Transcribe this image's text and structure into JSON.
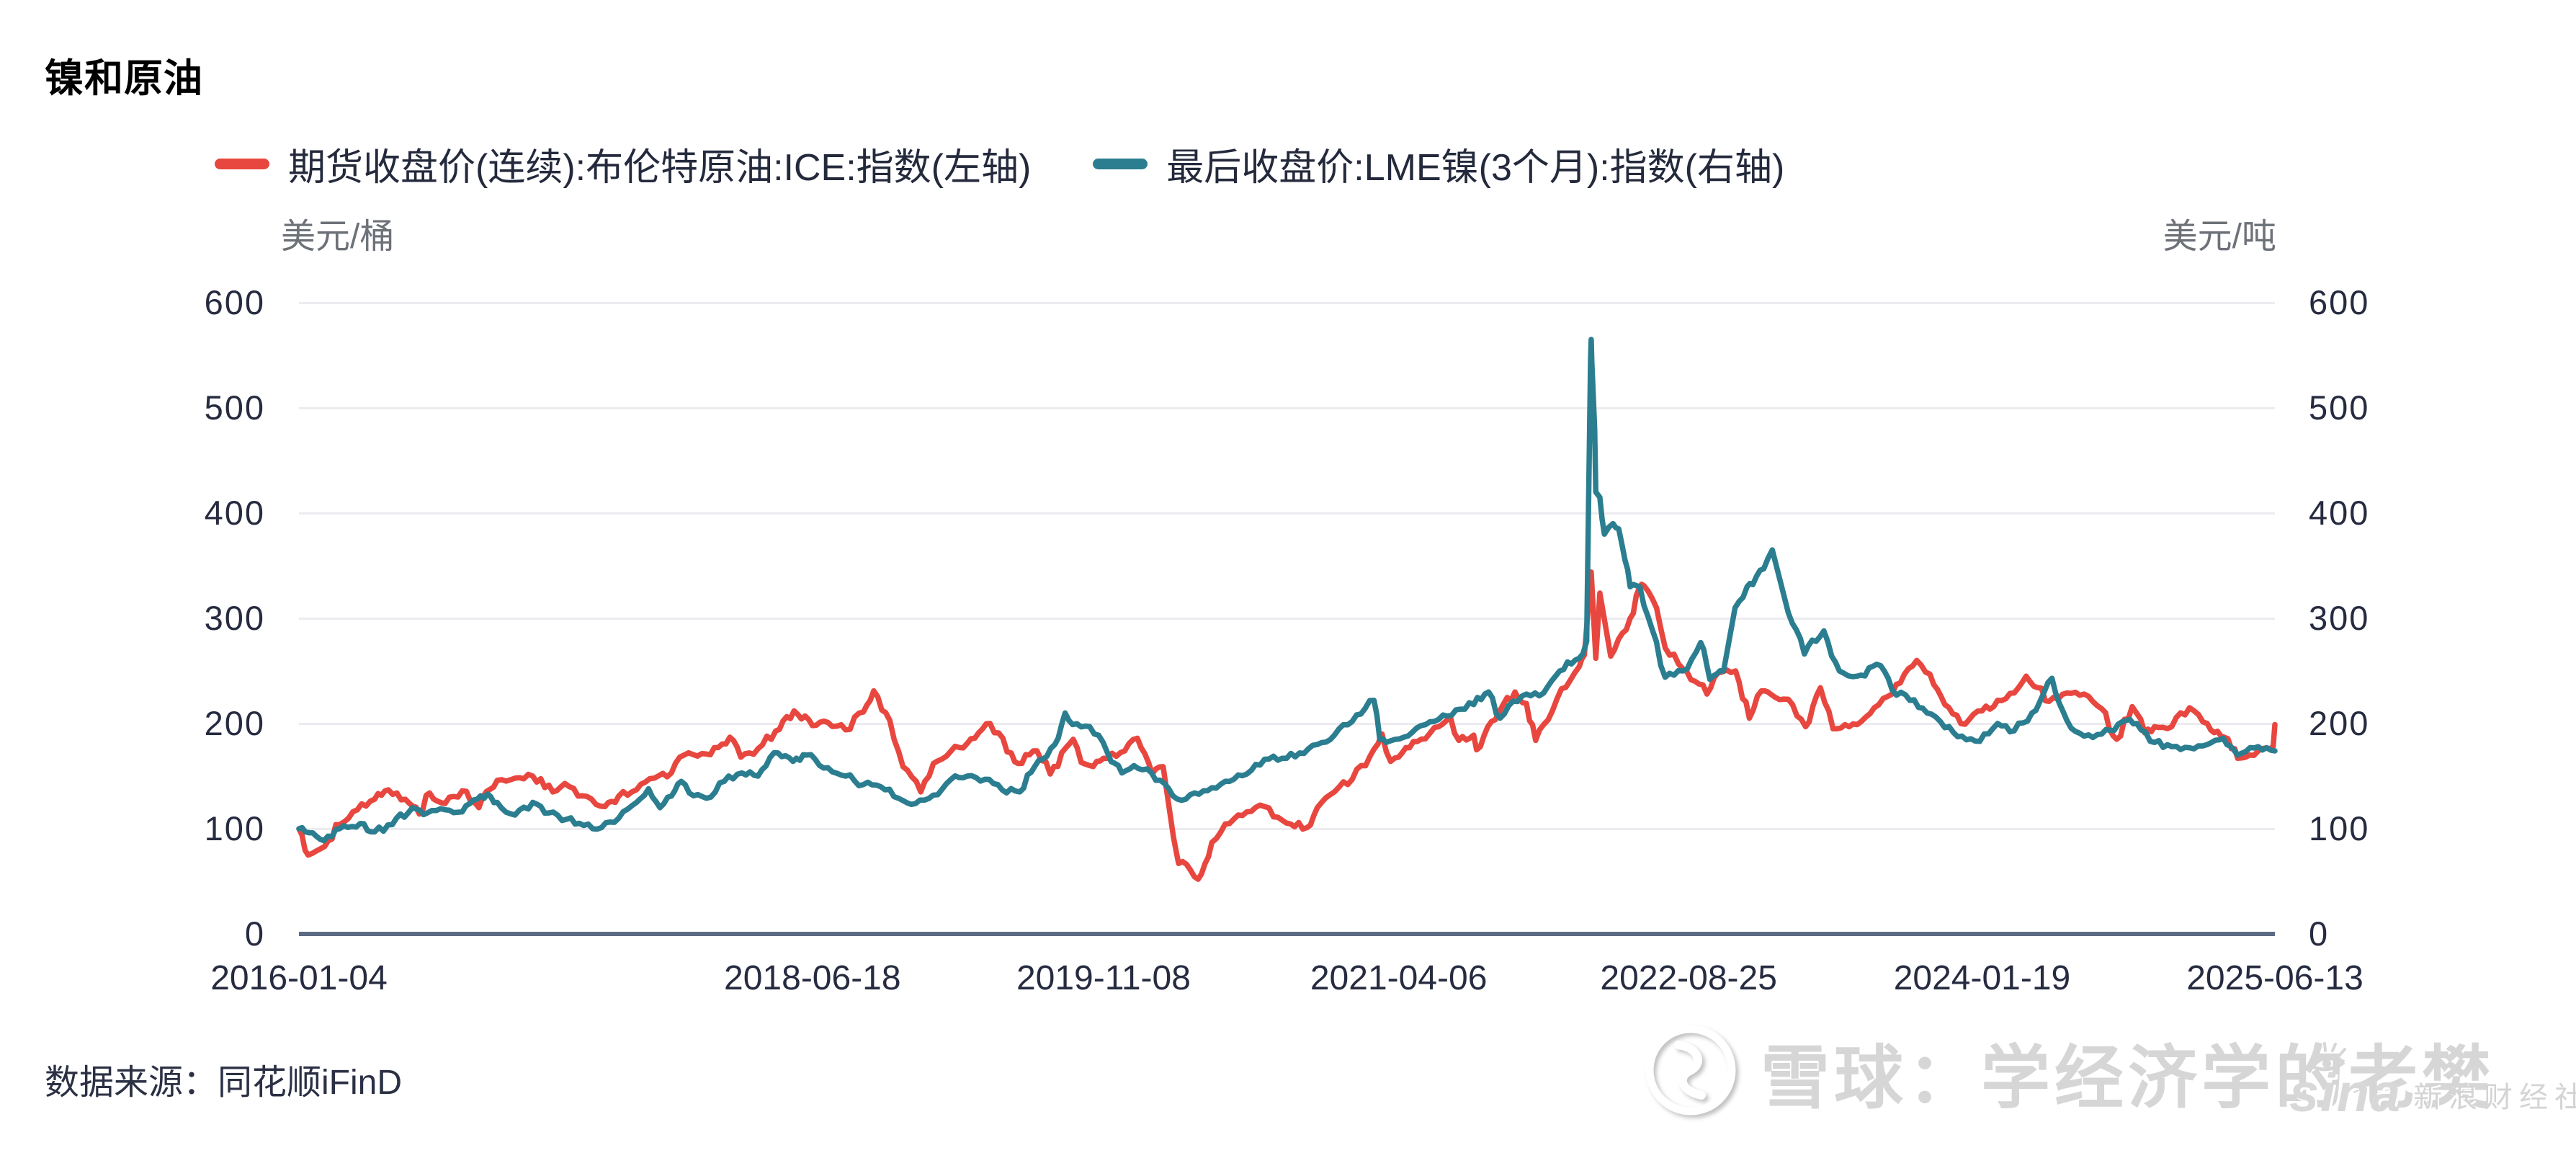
{
  "title": "镍和原油",
  "legend": [
    {
      "label": "期货收盘价(连续):布伦特原油:ICE:指数(左轴)",
      "color": "#e8473f"
    },
    {
      "label": "最后收盘价:LME镍(3个月):指数(右轴)",
      "color": "#2b7e90"
    }
  ],
  "axes": {
    "left_unit": "美元/桶",
    "right_unit": "美元/吨",
    "y_ticks": [
      0,
      100,
      200,
      300,
      400,
      500,
      600
    ],
    "x_ticks": [
      "2016-01-04",
      "2018-06-18",
      "2019-11-08",
      "2021-04-06",
      "2022-08-25",
      "2024-01-19",
      "2025-06-13"
    ]
  },
  "source": "数据来源：同花顺iFinD",
  "watermark": {
    "site": "雪球：学经济学的老樊",
    "badge_brand": "sina",
    "badge_text": "新浪财经社区"
  },
  "colors": {
    "brent": "#e8473f",
    "nickel": "#2b7e90",
    "gridline": "#ececf0",
    "axis": "#5c6a84",
    "tick_text": "#262b40",
    "unit_text": "#6d7178"
  },
  "chart_data": {
    "type": "line",
    "title": "镍和原油",
    "x_range": [
      "2016-01-04",
      "2025-06-13"
    ],
    "ylim": [
      0,
      600
    ],
    "grid": "horizontal",
    "legend_position": "top",
    "note": "两条指数曲线, 基期2016-01-04=100; 左轴为布伦特原油(美元/桶), 右轴为LME镍(美元/吨)",
    "series": [
      {
        "name": "期货收盘价(连续):布伦特原油:ICE:指数(左轴)",
        "axis": "left",
        "unit": "美元/桶",
        "color": "#e8473f",
        "points": [
          [
            "2016-01-04",
            100
          ],
          [
            "2016-01-20",
            75
          ],
          [
            "2016-02-11",
            81
          ],
          [
            "2016-03-15",
            104
          ],
          [
            "2016-04-15",
            118
          ],
          [
            "2016-05-15",
            128
          ],
          [
            "2016-06-08",
            137
          ],
          [
            "2016-07-15",
            124
          ],
          [
            "2016-08-01",
            114
          ],
          [
            "2016-08-19",
            134
          ],
          [
            "2016-09-15",
            124
          ],
          [
            "2016-10-15",
            136
          ],
          [
            "2016-11-13",
            120
          ],
          [
            "2016-12-15",
            146
          ],
          [
            "2017-01-15",
            148
          ],
          [
            "2017-02-15",
            150
          ],
          [
            "2017-03-22",
            135
          ],
          [
            "2017-04-12",
            143
          ],
          [
            "2017-05-05",
            131
          ],
          [
            "2017-06-21",
            121
          ],
          [
            "2017-07-15",
            131
          ],
          [
            "2017-08-15",
            137
          ],
          [
            "2017-09-15",
            148
          ],
          [
            "2017-10-15",
            153
          ],
          [
            "2017-11-06",
            170
          ],
          [
            "2017-12-15",
            171
          ],
          [
            "2018-01-25",
            187
          ],
          [
            "2018-02-13",
            168
          ],
          [
            "2018-03-15",
            176
          ],
          [
            "2018-04-15",
            193
          ],
          [
            "2018-05-17",
            212
          ],
          [
            "2018-06-18",
            198
          ],
          [
            "2018-07-15",
            201
          ],
          [
            "2018-08-15",
            194
          ],
          [
            "2018-09-15",
            211
          ],
          [
            "2018-10-03",
            231
          ],
          [
            "2018-10-31",
            203
          ],
          [
            "2018-11-23",
            159
          ],
          [
            "2018-12-24",
            135
          ],
          [
            "2019-01-15",
            162
          ],
          [
            "2019-02-15",
            174
          ],
          [
            "2019-03-15",
            181
          ],
          [
            "2019-04-24",
            200
          ],
          [
            "2019-05-31",
            172
          ],
          [
            "2019-06-12",
            162
          ],
          [
            "2019-07-15",
            174
          ],
          [
            "2019-08-07",
            152
          ],
          [
            "2019-09-16",
            185
          ],
          [
            "2019-09-30",
            163
          ],
          [
            "2019-10-15",
            160
          ],
          [
            "2019-11-08",
            167
          ],
          [
            "2019-12-15",
            174
          ],
          [
            "2020-01-06",
            186
          ],
          [
            "2020-02-01",
            152
          ],
          [
            "2020-02-20",
            159
          ],
          [
            "2020-03-09",
            92
          ],
          [
            "2020-03-18",
            67
          ],
          [
            "2020-04-01",
            66
          ],
          [
            "2020-04-21",
            52
          ],
          [
            "2020-05-15",
            87
          ],
          [
            "2020-06-15",
            105
          ],
          [
            "2020-07-15",
            116
          ],
          [
            "2020-08-15",
            121
          ],
          [
            "2020-09-15",
            108
          ],
          [
            "2020-10-28",
            101
          ],
          [
            "2020-11-15",
            120
          ],
          [
            "2020-12-15",
            135
          ],
          [
            "2021-01-15",
            147
          ],
          [
            "2021-02-15",
            169
          ],
          [
            "2021-03-08",
            190
          ],
          [
            "2021-03-23",
            164
          ],
          [
            "2021-04-06",
            168
          ],
          [
            "2021-04-25",
            177
          ],
          [
            "2021-05-15",
            185
          ],
          [
            "2021-06-15",
            197
          ],
          [
            "2021-07-05",
            207
          ],
          [
            "2021-07-20",
            184
          ],
          [
            "2021-08-15",
            189
          ],
          [
            "2021-08-20",
            175
          ],
          [
            "2021-09-15",
            202
          ],
          [
            "2021-10-26",
            230
          ],
          [
            "2021-11-15",
            219
          ],
          [
            "2021-12-01",
            184
          ],
          [
            "2021-12-15",
            199
          ],
          [
            "2022-01-15",
            233
          ],
          [
            "2022-02-15",
            254
          ],
          [
            "2022-02-24",
            265
          ],
          [
            "2022-03-08",
            344
          ],
          [
            "2022-03-16",
            262
          ],
          [
            "2022-03-23",
            324
          ],
          [
            "2022-04-11",
            264
          ],
          [
            "2022-05-15",
            300
          ],
          [
            "2022-05-31",
            329
          ],
          [
            "2022-06-08",
            331
          ],
          [
            "2022-06-30",
            310
          ],
          [
            "2022-07-15",
            272
          ],
          [
            "2022-08-15",
            252
          ],
          [
            "2022-09-26",
            228
          ],
          [
            "2022-10-15",
            248
          ],
          [
            "2022-11-15",
            250
          ],
          [
            "2022-12-09",
            205
          ],
          [
            "2022-12-30",
            231
          ],
          [
            "2023-01-15",
            228
          ],
          [
            "2023-02-15",
            223
          ],
          [
            "2023-03-17",
            197
          ],
          [
            "2023-04-12",
            234
          ],
          [
            "2023-05-04",
            195
          ],
          [
            "2023-06-15",
            199
          ],
          [
            "2023-07-15",
            215
          ],
          [
            "2023-08-15",
            228
          ],
          [
            "2023-09-27",
            260
          ],
          [
            "2023-10-20",
            247
          ],
          [
            "2023-11-15",
            218
          ],
          [
            "2023-12-13",
            200
          ],
          [
            "2024-01-19",
            212
          ],
          [
            "2024-02-15",
            222
          ],
          [
            "2024-03-15",
            229
          ],
          [
            "2024-04-05",
            245
          ],
          [
            "2024-05-15",
            221
          ],
          [
            "2024-06-15",
            229
          ],
          [
            "2024-07-15",
            228
          ],
          [
            "2024-08-15",
            214
          ],
          [
            "2024-09-10",
            185
          ],
          [
            "2024-10-07",
            216
          ],
          [
            "2024-10-29",
            191
          ],
          [
            "2024-11-15",
            197
          ],
          [
            "2024-12-15",
            197
          ],
          [
            "2025-01-15",
            215
          ],
          [
            "2025-02-15",
            200
          ],
          [
            "2025-03-11",
            188
          ],
          [
            "2025-04-04",
            176
          ],
          [
            "2025-04-09",
            167
          ],
          [
            "2025-04-30",
            170
          ],
          [
            "2025-05-15",
            174
          ],
          [
            "2025-06-10",
            178
          ],
          [
            "2025-06-13",
            199
          ]
        ]
      },
      {
        "name": "最后收盘价:LME镍(3个月):指数(右轴)",
        "axis": "right",
        "unit": "美元/吨",
        "color": "#2b7e90",
        "points": [
          [
            "2016-01-04",
            100
          ],
          [
            "2016-01-15",
            97
          ],
          [
            "2016-02-10",
            90
          ],
          [
            "2016-03-15",
            100
          ],
          [
            "2016-04-20",
            105
          ],
          [
            "2016-05-15",
            97
          ],
          [
            "2016-06-15",
            104
          ],
          [
            "2016-07-20",
            120
          ],
          [
            "2016-08-15",
            115
          ],
          [
            "2016-09-15",
            118
          ],
          [
            "2016-10-15",
            116
          ],
          [
            "2016-11-10",
            128
          ],
          [
            "2016-11-28",
            133
          ],
          [
            "2016-12-15",
            125
          ],
          [
            "2017-01-15",
            113
          ],
          [
            "2017-02-15",
            125
          ],
          [
            "2017-03-15",
            115
          ],
          [
            "2017-04-15",
            109
          ],
          [
            "2017-05-15",
            103
          ],
          [
            "2017-06-15",
            101
          ],
          [
            "2017-07-15",
            110
          ],
          [
            "2017-08-15",
            125
          ],
          [
            "2017-09-05",
            138
          ],
          [
            "2017-09-25",
            120
          ],
          [
            "2017-10-15",
            131
          ],
          [
            "2017-11-01",
            145
          ],
          [
            "2017-11-15",
            134
          ],
          [
            "2017-12-15",
            129
          ],
          [
            "2018-01-15",
            145
          ],
          [
            "2018-02-15",
            153
          ],
          [
            "2018-03-15",
            150
          ],
          [
            "2018-04-19",
            172
          ],
          [
            "2018-05-15",
            164
          ],
          [
            "2018-06-08",
            170
          ],
          [
            "2018-07-15",
            158
          ],
          [
            "2018-08-15",
            150
          ],
          [
            "2018-09-15",
            142
          ],
          [
            "2018-10-15",
            140
          ],
          [
            "2018-11-15",
            129
          ],
          [
            "2018-12-15",
            124
          ],
          [
            "2019-01-15",
            132
          ],
          [
            "2019-02-15",
            147
          ],
          [
            "2019-03-15",
            150
          ],
          [
            "2019-04-15",
            147
          ],
          [
            "2019-05-15",
            137
          ],
          [
            "2019-06-15",
            135
          ],
          [
            "2019-07-18",
            165
          ],
          [
            "2019-08-15",
            180
          ],
          [
            "2019-09-02",
            210
          ],
          [
            "2019-09-15",
            199
          ],
          [
            "2019-10-15",
            197
          ],
          [
            "2019-11-15",
            172
          ],
          [
            "2019-12-10",
            153
          ],
          [
            "2019-12-31",
            160
          ],
          [
            "2020-01-15",
            156
          ],
          [
            "2020-02-15",
            146
          ],
          [
            "2020-03-23",
            127
          ],
          [
            "2020-04-15",
            134
          ],
          [
            "2020-05-15",
            139
          ],
          [
            "2020-06-15",
            145
          ],
          [
            "2020-07-15",
            152
          ],
          [
            "2020-08-15",
            166
          ],
          [
            "2020-09-15",
            167
          ],
          [
            "2020-10-15",
            172
          ],
          [
            "2020-11-15",
            180
          ],
          [
            "2020-12-15",
            189
          ],
          [
            "2021-01-15",
            202
          ],
          [
            "2021-02-22",
            222
          ],
          [
            "2021-03-04",
            185
          ],
          [
            "2021-03-15",
            182
          ],
          [
            "2021-04-15",
            187
          ],
          [
            "2021-05-15",
            198
          ],
          [
            "2021-06-15",
            204
          ],
          [
            "2021-07-15",
            213
          ],
          [
            "2021-08-15",
            218
          ],
          [
            "2021-09-10",
            230
          ],
          [
            "2021-09-30",
            205
          ],
          [
            "2021-10-15",
            217
          ],
          [
            "2021-11-15",
            228
          ],
          [
            "2021-12-15",
            229
          ],
          [
            "2022-01-12",
            250
          ],
          [
            "2022-02-15",
            262
          ],
          [
            "2022-02-28",
            278
          ],
          [
            "2022-03-07",
            549
          ],
          [
            "2022-03-08",
            565
          ],
          [
            "2022-03-09",
            545
          ],
          [
            "2022-03-14",
            480
          ],
          [
            "2022-03-16",
            420
          ],
          [
            "2022-03-23",
            415
          ],
          [
            "2022-03-31",
            380
          ],
          [
            "2022-04-15",
            390
          ],
          [
            "2022-04-25",
            385
          ],
          [
            "2022-05-06",
            355
          ],
          [
            "2022-05-15",
            330
          ],
          [
            "2022-06-01",
            330
          ],
          [
            "2022-06-22",
            290
          ],
          [
            "2022-07-15",
            244
          ],
          [
            "2022-08-15",
            250
          ],
          [
            "2022-09-15",
            277
          ],
          [
            "2022-10-01",
            242
          ],
          [
            "2022-10-25",
            250
          ],
          [
            "2022-11-14",
            310
          ],
          [
            "2022-12-05",
            330
          ],
          [
            "2022-12-15",
            332
          ],
          [
            "2023-01-03",
            347
          ],
          [
            "2023-01-18",
            365
          ],
          [
            "2023-02-15",
            305
          ],
          [
            "2023-03-15",
            266
          ],
          [
            "2023-04-18",
            288
          ],
          [
            "2023-05-15",
            250
          ],
          [
            "2023-06-15",
            245
          ],
          [
            "2023-07-26",
            255
          ],
          [
            "2023-08-15",
            232
          ],
          [
            "2023-09-15",
            222
          ],
          [
            "2023-10-15",
            210
          ],
          [
            "2023-11-15",
            196
          ],
          [
            "2023-12-15",
            188
          ],
          [
            "2024-01-15",
            183
          ],
          [
            "2024-02-15",
            200
          ],
          [
            "2024-03-15",
            193
          ],
          [
            "2024-04-15",
            210
          ],
          [
            "2024-05-20",
            243
          ],
          [
            "2024-06-15",
            203
          ],
          [
            "2024-07-15",
            188
          ],
          [
            "2024-08-15",
            190
          ],
          [
            "2024-09-27",
            203
          ],
          [
            "2024-10-15",
            200
          ],
          [
            "2024-11-15",
            182
          ],
          [
            "2024-12-15",
            178
          ],
          [
            "2025-01-15",
            177
          ],
          [
            "2025-02-15",
            180
          ],
          [
            "2025-03-15",
            186
          ],
          [
            "2025-04-09",
            170
          ],
          [
            "2025-05-15",
            178
          ],
          [
            "2025-06-13",
            174
          ]
        ]
      }
    ]
  }
}
